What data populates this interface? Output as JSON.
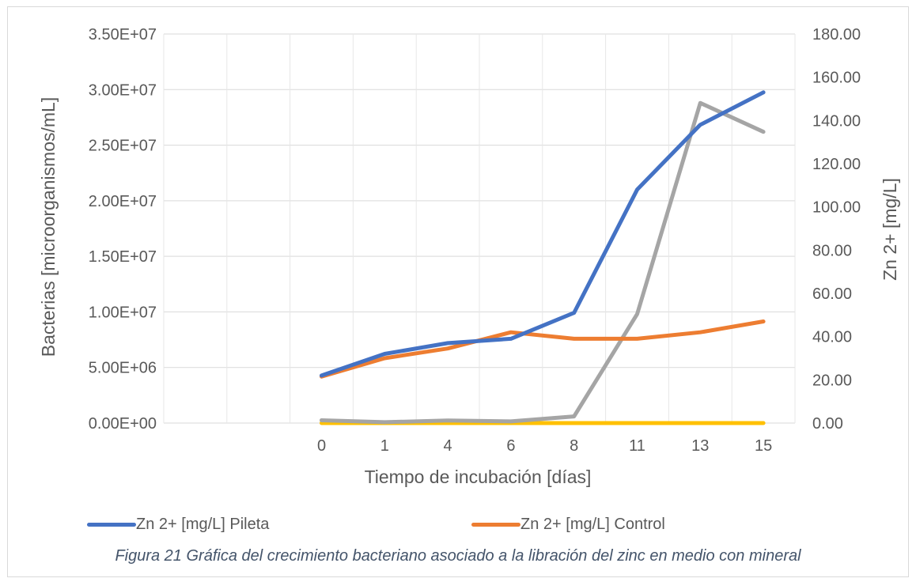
{
  "chart_data": {
    "type": "line",
    "xlabel": "Tiempo de incubación [días]",
    "ylabel_left": "Bacterias [microorganismos/mL]",
    "ylabel_right": "Zn 2+ [mg/L]",
    "categories": [
      "0",
      "1",
      "4",
      "6",
      "8",
      "11",
      "13",
      "15"
    ],
    "y_left": {
      "min": 0,
      "max": 35000000,
      "ticks": [
        "0.00E+00",
        "5.00E+06",
        "1.00E+07",
        "1.50E+07",
        "2.00E+07",
        "2.50E+07",
        "3.00E+07",
        "3.50E+07"
      ]
    },
    "y_right": {
      "min": 0,
      "max": 180,
      "ticks": [
        "0.00",
        "20.00",
        "40.00",
        "60.00",
        "80.00",
        "100.00",
        "120.00",
        "140.00",
        "160.00",
        "180.00"
      ]
    },
    "grid": true,
    "legend_position": "bottom",
    "series": [
      {
        "name": "Zn 2+ [mg/L] Pileta",
        "axis": "right",
        "color": "#4472c4",
        "values": [
          22,
          32,
          37,
          39,
          51,
          108,
          138,
          153
        ]
      },
      {
        "name": "Zn 2+ [mg/L] Control",
        "axis": "right",
        "color": "#ed7d31",
        "values": [
          21.5,
          30,
          34.5,
          42,
          39,
          39,
          42,
          47
        ]
      },
      {
        "axis": "left",
        "color": "#a5a5a5",
        "values": [
          250000,
          80000,
          230000,
          150000,
          600000,
          9800000,
          28800000,
          26200000
        ]
      },
      {
        "axis": "left",
        "color": "#ffc000",
        "values": [
          0,
          0,
          0,
          0,
          0,
          0,
          0,
          0
        ]
      }
    ]
  },
  "legend": {
    "item1": "Zn 2+ [mg/L] Pileta",
    "item2": "Zn 2+ [mg/L] Control"
  },
  "caption": "Figura 21 Gráfica del crecimiento bacteriano asociado a la libración del zinc en medio con mineral"
}
